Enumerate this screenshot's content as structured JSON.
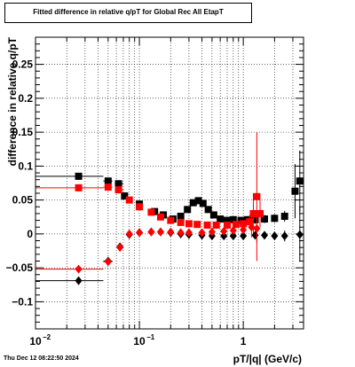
{
  "chart_data": {
    "type": "scatter",
    "title": "Fitted difference in relative q/pT for Global Rec All EtapT",
    "xlabel": "pT/|q| (GeV/c)",
    "ylabel": "difference in relative q/pT",
    "xscale": "log",
    "xlim": [
      0.01,
      3.8
    ],
    "ylim": [
      -0.14,
      0.29
    ],
    "grid": true,
    "legend": "none",
    "x_ticks": [
      {
        "label": "10",
        "exp": "−2",
        "value": 0.01
      },
      {
        "label": "10",
        "exp": "−1",
        "value": 0.1
      },
      {
        "label": "1",
        "exp": "",
        "value": 1
      }
    ],
    "y_ticks": [
      {
        "label": "−0.1",
        "value": -0.1
      },
      {
        "label": "−0.05",
        "value": -0.05
      },
      {
        "label": "0",
        "value": 0
      },
      {
        "label": "0.05",
        "value": 0.05
      },
      {
        "label": "0.1",
        "value": 0.1
      },
      {
        "label": "0.15",
        "value": 0.15
      },
      {
        "label": "0.2",
        "value": 0.2
      },
      {
        "label": "0.25",
        "value": 0.25
      }
    ],
    "series": [
      {
        "color": "#000000",
        "marker": "square",
        "points": [
          {
            "x": 0.026,
            "y": 0.085,
            "xlo": 0.01,
            "xhi": 0.045,
            "yerr": 0.005
          },
          {
            "x": 0.05,
            "y": 0.078,
            "xlo": 0.045,
            "xhi": 0.055,
            "yerr": 0.004
          },
          {
            "x": 0.063,
            "y": 0.074,
            "xlo": 0.058,
            "xhi": 0.07,
            "yerr": 0.004
          },
          {
            "x": 0.072,
            "y": 0.056,
            "yerr": 0.003
          },
          {
            "x": 0.1,
            "y": 0.044,
            "yerr": 0.003
          },
          {
            "x": 0.14,
            "y": 0.033,
            "yerr": 0.003
          },
          {
            "x": 0.17,
            "y": 0.028,
            "yerr": 0.003
          },
          {
            "x": 0.21,
            "y": 0.022,
            "yerr": 0.003
          },
          {
            "x": 0.25,
            "y": 0.026,
            "yerr": 0.003
          },
          {
            "x": 0.29,
            "y": 0.036,
            "yerr": 0.003
          },
          {
            "x": 0.33,
            "y": 0.046,
            "yerr": 0.003
          },
          {
            "x": 0.37,
            "y": 0.049,
            "yerr": 0.003
          },
          {
            "x": 0.41,
            "y": 0.045,
            "yerr": 0.003
          },
          {
            "x": 0.46,
            "y": 0.036,
            "yerr": 0.003
          },
          {
            "x": 0.52,
            "y": 0.028,
            "yerr": 0.003
          },
          {
            "x": 0.6,
            "y": 0.022,
            "yerr": 0.003
          },
          {
            "x": 0.7,
            "y": 0.02,
            "yerr": 0.003
          },
          {
            "x": 0.8,
            "y": 0.021,
            "yerr": 0.003
          },
          {
            "x": 0.95,
            "y": 0.02,
            "yerr": 0.004
          },
          {
            "x": 1.1,
            "y": 0.021,
            "yerr": 0.005
          },
          {
            "x": 1.3,
            "y": 0.021,
            "yerr": 0.006
          },
          {
            "x": 1.6,
            "y": 0.022,
            "yerr": 0.006
          },
          {
            "x": 2.0,
            "y": 0.023,
            "yerr": 0.006
          },
          {
            "x": 2.5,
            "y": 0.026,
            "yerr": 0.008
          },
          {
            "x": 3.15,
            "y": 0.063,
            "yerr": 0.04
          },
          {
            "x": 3.5,
            "y": 0.078,
            "yerr": 0.045
          }
        ]
      },
      {
        "color": "#ff0000",
        "marker": "square",
        "points": [
          {
            "x": 0.026,
            "y": 0.068,
            "xlo": 0.01,
            "xhi": 0.045,
            "yerr": 0.005
          },
          {
            "x": 0.05,
            "y": 0.069,
            "xlo": 0.045,
            "xhi": 0.055,
            "yerr": 0.004
          },
          {
            "x": 0.063,
            "y": 0.065,
            "xlo": 0.058,
            "xhi": 0.07,
            "yerr": 0.004
          },
          {
            "x": 0.08,
            "y": 0.05,
            "yerr": 0.003
          },
          {
            "x": 0.1,
            "y": 0.04,
            "yerr": 0.003
          },
          {
            "x": 0.13,
            "y": 0.032,
            "yerr": 0.003
          },
          {
            "x": 0.16,
            "y": 0.025,
            "yerr": 0.003
          },
          {
            "x": 0.2,
            "y": 0.02,
            "yerr": 0.003
          },
          {
            "x": 0.25,
            "y": 0.017,
            "yerr": 0.003
          },
          {
            "x": 0.3,
            "y": 0.015,
            "yerr": 0.003
          },
          {
            "x": 0.36,
            "y": 0.014,
            "yerr": 0.003
          },
          {
            "x": 0.45,
            "y": 0.013,
            "yerr": 0.003
          },
          {
            "x": 0.55,
            "y": 0.013,
            "yerr": 0.003
          },
          {
            "x": 0.7,
            "y": 0.013,
            "yerr": 0.003
          },
          {
            "x": 0.85,
            "y": 0.014,
            "yerr": 0.004
          },
          {
            "x": 1.0,
            "y": 0.015,
            "yerr": 0.005
          },
          {
            "x": 1.15,
            "y": 0.018,
            "yerr": 0.01
          },
          {
            "x": 1.25,
            "y": 0.03,
            "yerr": 0.03
          },
          {
            "x": 1.35,
            "y": 0.055,
            "yerr": 0.095
          },
          {
            "x": 1.45,
            "y": 0.03,
            "yerr": 0.02
          }
        ]
      },
      {
        "color": "#000000",
        "marker": "diamond",
        "points": [
          {
            "x": 0.026,
            "y": -0.069,
            "xlo": 0.01,
            "xhi": 0.045,
            "yerr": 0.005
          },
          {
            "x": 0.05,
            "y": -0.04,
            "xlo": 0.045,
            "xhi": 0.055,
            "yerr": 0.003
          },
          {
            "x": 0.065,
            "y": -0.019,
            "yerr": 0.003
          },
          {
            "x": 0.08,
            "y": -0.001,
            "yerr": 0.002
          },
          {
            "x": 0.1,
            "y": 0.002,
            "yerr": 0.002
          },
          {
            "x": 0.13,
            "y": 0.003,
            "yerr": 0.002
          },
          {
            "x": 0.16,
            "y": 0.003,
            "yerr": 0.002
          },
          {
            "x": 0.2,
            "y": 0.002,
            "yerr": 0.002
          },
          {
            "x": 0.25,
            "y": 0.0,
            "yerr": 0.002
          },
          {
            "x": 0.3,
            "y": -0.001,
            "yerr": 0.002
          },
          {
            "x": 0.4,
            "y": -0.002,
            "yerr": 0.002
          },
          {
            "x": 0.5,
            "y": -0.003,
            "yerr": 0.002
          },
          {
            "x": 0.65,
            "y": -0.003,
            "yerr": 0.003
          },
          {
            "x": 0.8,
            "y": -0.003,
            "yerr": 0.003
          },
          {
            "x": 1.0,
            "y": -0.003,
            "yerr": 0.004
          },
          {
            "x": 1.3,
            "y": -0.002,
            "yerr": 0.005
          },
          {
            "x": 1.6,
            "y": -0.002,
            "yerr": 0.006
          },
          {
            "x": 2.0,
            "y": -0.003,
            "yerr": 0.006
          },
          {
            "x": 2.5,
            "y": -0.003,
            "yerr": 0.008
          },
          {
            "x": 3.5,
            "y": -0.001,
            "yerr": 0.04
          }
        ]
      },
      {
        "color": "#ff0000",
        "marker": "diamond",
        "points": [
          {
            "x": 0.026,
            "y": -0.052,
            "xlo": 0.01,
            "xhi": 0.045,
            "yerr": 0.005
          },
          {
            "x": 0.05,
            "y": -0.041,
            "xlo": 0.045,
            "xhi": 0.055,
            "yerr": 0.003
          },
          {
            "x": 0.065,
            "y": -0.02,
            "yerr": 0.003
          },
          {
            "x": 0.08,
            "y": 0.0,
            "yerr": 0.002
          },
          {
            "x": 0.1,
            "y": 0.002,
            "yerr": 0.002
          },
          {
            "x": 0.13,
            "y": 0.003,
            "yerr": 0.002
          },
          {
            "x": 0.16,
            "y": 0.003,
            "yerr": 0.002
          },
          {
            "x": 0.2,
            "y": 0.003,
            "yerr": 0.002
          },
          {
            "x": 0.25,
            "y": 0.002,
            "yerr": 0.002
          },
          {
            "x": 0.3,
            "y": 0.002,
            "yerr": 0.002
          },
          {
            "x": 0.4,
            "y": 0.002,
            "yerr": 0.002
          },
          {
            "x": 0.5,
            "y": 0.003,
            "yerr": 0.002
          },
          {
            "x": 0.65,
            "y": 0.004,
            "yerr": 0.003
          },
          {
            "x": 0.8,
            "y": 0.005,
            "yerr": 0.003
          },
          {
            "x": 1.0,
            "y": 0.006,
            "yerr": 0.005
          },
          {
            "x": 1.2,
            "y": 0.01,
            "yerr": 0.015
          },
          {
            "x": 1.35,
            "y": 0.008,
            "yerr": 0.02
          }
        ]
      }
    ]
  },
  "timestamp": "Thu Dec 12 08:22:50 2024"
}
